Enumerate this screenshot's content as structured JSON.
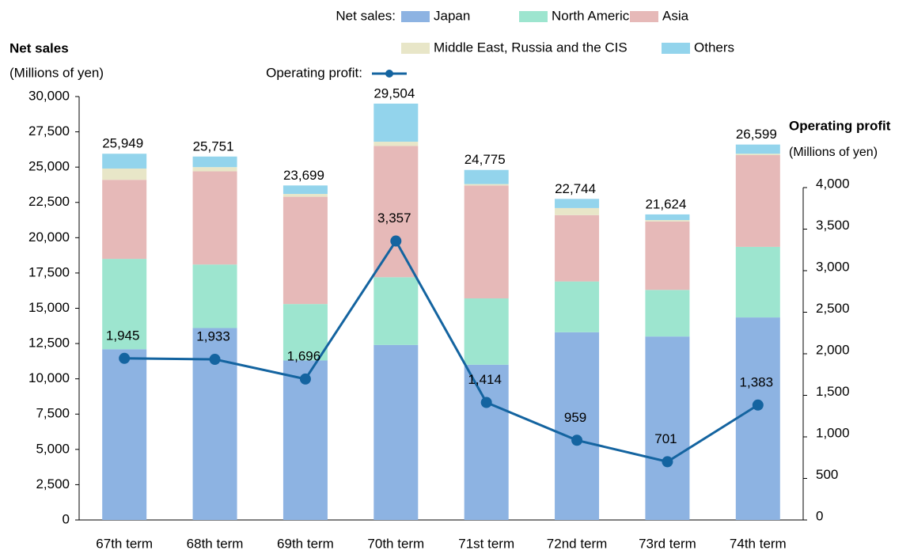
{
  "chart_data": {
    "type": "bar",
    "stacked": true,
    "y_axis_title": "Net sales",
    "y_axis_subtitle": "(Millions of yen)",
    "y2_axis_title": "Operating profit",
    "y2_axis_subtitle": "(Millions of yen)",
    "legend_group_sales": "Net sales:",
    "legend_group_profit": "Operating profit:",
    "categories": [
      "67th term",
      "68th term",
      "69th term",
      "70th term",
      "71st term",
      "72nd term",
      "73rd term",
      "74th term"
    ],
    "series": [
      {
        "name": "Japan",
        "color": "#8db3e2",
        "values": [
          12100,
          13600,
          11300,
          12400,
          11000,
          13300,
          13000,
          14350
        ]
      },
      {
        "name": "North America",
        "color": "#9de5cf",
        "values": [
          6400,
          4500,
          4000,
          4800,
          4700,
          3600,
          3300,
          5000
        ]
      },
      {
        "name": "Asia",
        "color": "#e6b9b8",
        "values": [
          5600,
          6600,
          7600,
          9300,
          8000,
          4700,
          4850,
          6500
        ]
      },
      {
        "name": "Middle East,  Russia and the CIS",
        "color": "#e8e6c8",
        "values": [
          800,
          300,
          200,
          300,
          100,
          500,
          100,
          100
        ]
      },
      {
        "name": "Others",
        "color": "#93d4ec",
        "values": [
          1050,
          750,
          600,
          2700,
          1000,
          650,
          400,
          650
        ]
      },
      {
        "name": "Operating profit",
        "type": "line",
        "axis": "y2",
        "color": "#1464a0",
        "values": [
          1945,
          1933,
          1696,
          3357,
          1414,
          959,
          701,
          1383
        ],
        "value_labels": [
          "1,945",
          "1,933",
          "1,696",
          "3,357",
          "1,414",
          "959",
          "701",
          "1,383"
        ]
      }
    ],
    "total_labels": [
      "25,949",
      "25,751",
      "23,699",
      "29,504",
      "24,775",
      "22,744",
      "21,624",
      "26,599"
    ],
    "ylim": [
      0,
      30000
    ],
    "yticks": [
      0,
      {
        "value": 2500,
        "label": "2,500"
      },
      {
        "value": 5000,
        "label": "5,000"
      },
      {
        "value": 7500,
        "label": "7,500"
      },
      {
        "value": 10000,
        "label": "10,000"
      },
      {
        "value": 12500,
        "label": "12,500"
      },
      {
        "value": 15000,
        "label": "15,000"
      },
      {
        "value": 17500,
        "label": "17,500"
      },
      {
        "value": 20000,
        "label": "20,000"
      },
      {
        "value": 22500,
        "label": "22,500"
      },
      {
        "value": 25000,
        "label": "25,000"
      },
      {
        "value": 27500,
        "label": "27,500"
      },
      {
        "value": 30000,
        "label": "30,000"
      }
    ],
    "y2lim": [
      0,
      4000
    ],
    "y2ticks": [
      0,
      500,
      {
        "value": 1000,
        "label": "1,000"
      },
      {
        "value": 1500,
        "label": "1,500"
      },
      {
        "value": 2000,
        "label": "2,000"
      },
      {
        "value": 2500,
        "label": "2,500"
      },
      {
        "value": 3000,
        "label": "3,000"
      },
      {
        "value": 3500,
        "label": "3,500"
      },
      {
        "value": 4000,
        "label": "4,000"
      }
    ],
    "grid": false
  }
}
